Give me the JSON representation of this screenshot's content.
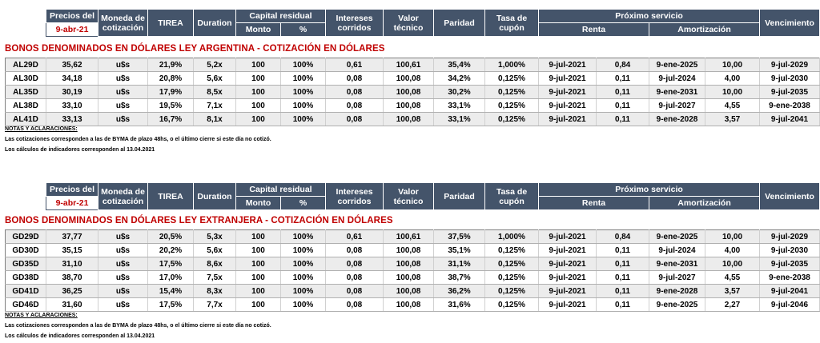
{
  "header": {
    "precios_del": "Precios del",
    "date": "9-abr-21",
    "moneda": "Moneda de",
    "cotizacion": "cotización",
    "tirea": "TIREA",
    "duration": "Duration",
    "capital_residual": "Capital residual",
    "monto": "Monto",
    "pct": "%",
    "intereses": "Intereses",
    "corridos": "corridos",
    "valor": "Valor",
    "tecnico": "técnico",
    "paridad": "Paridad",
    "tasa_de": "Tasa de",
    "cupon": "cupón",
    "proximo_servicio": "Próximo servicio",
    "renta": "Renta",
    "amortizacion": "Amortización",
    "vencimiento": "Vencimiento"
  },
  "notes": {
    "title": "NOTAS Y ACLARACIONES:",
    "line1": "Las cotizaciones corresponden a las de BYMA de plazo 48hs, o el último cierre si este día no cotizó.",
    "line2": "Los cálculos de indicadores corresponden al 13.04.2021"
  },
  "sections": [
    {
      "title": "BONOS DENOMINADOS EN DÓLARES LEY ARGENTINA   -   COTIZACIÓN EN DÓLARES",
      "rows": [
        [
          "AL29D",
          "35,62",
          "u$s",
          "21,9%",
          "5,2x",
          "100",
          "100%",
          "0,61",
          "100,61",
          "35,4%",
          "1,000%",
          "9-jul-2021",
          "0,84",
          "9-ene-2025",
          "10,00",
          "9-jul-2029"
        ],
        [
          "AL30D",
          "34,18",
          "u$s",
          "20,8%",
          "5,6x",
          "100",
          "100%",
          "0,08",
          "100,08",
          "34,2%",
          "0,125%",
          "9-jul-2021",
          "0,11",
          "9-jul-2024",
          "4,00",
          "9-jul-2030"
        ],
        [
          "AL35D",
          "30,19",
          "u$s",
          "17,9%",
          "8,5x",
          "100",
          "100%",
          "0,08",
          "100,08",
          "30,2%",
          "0,125%",
          "9-jul-2021",
          "0,11",
          "9-ene-2031",
          "10,00",
          "9-jul-2035"
        ],
        [
          "AL38D",
          "33,10",
          "u$s",
          "19,5%",
          "7,1x",
          "100",
          "100%",
          "0,08",
          "100,08",
          "33,1%",
          "0,125%",
          "9-jul-2021",
          "0,11",
          "9-jul-2027",
          "4,55",
          "9-ene-2038"
        ],
        [
          "AL41D",
          "33,13",
          "u$s",
          "16,7%",
          "8,1x",
          "100",
          "100%",
          "0,08",
          "100,08",
          "33,1%",
          "0,125%",
          "9-jul-2021",
          "0,11",
          "9-ene-2028",
          "3,57",
          "9-jul-2041"
        ]
      ]
    },
    {
      "title": "BONOS DENOMINADOS EN DÓLARES LEY EXTRANJERA   -   COTIZACIÓN EN DÓLARES",
      "rows": [
        [
          "GD29D",
          "37,77",
          "u$s",
          "20,5%",
          "5,3x",
          "100",
          "100%",
          "0,61",
          "100,61",
          "37,5%",
          "1,000%",
          "9-jul-2021",
          "0,84",
          "9-ene-2025",
          "10,00",
          "9-jul-2029"
        ],
        [
          "GD30D",
          "35,15",
          "u$s",
          "20,2%",
          "5,6x",
          "100",
          "100%",
          "0,08",
          "100,08",
          "35,1%",
          "0,125%",
          "9-jul-2021",
          "0,11",
          "9-jul-2024",
          "4,00",
          "9-jul-2030"
        ],
        [
          "GD35D",
          "31,10",
          "u$s",
          "17,5%",
          "8,6x",
          "100",
          "100%",
          "0,08",
          "100,08",
          "31,1%",
          "0,125%",
          "9-jul-2021",
          "0,11",
          "9-ene-2031",
          "10,00",
          "9-jul-2035"
        ],
        [
          "GD38D",
          "38,70",
          "u$s",
          "17,0%",
          "7,5x",
          "100",
          "100%",
          "0,08",
          "100,08",
          "38,7%",
          "0,125%",
          "9-jul-2021",
          "0,11",
          "9-jul-2027",
          "4,55",
          "9-ene-2038"
        ],
        [
          "GD41D",
          "36,25",
          "u$s",
          "15,4%",
          "8,3x",
          "100",
          "100%",
          "0,08",
          "100,08",
          "36,2%",
          "0,125%",
          "9-jul-2021",
          "0,11",
          "9-ene-2028",
          "3,57",
          "9-jul-2041"
        ],
        [
          "GD46D",
          "31,60",
          "u$s",
          "17,5%",
          "7,7x",
          "100",
          "100%",
          "0,08",
          "100,08",
          "31,6%",
          "0,125%",
          "9-jul-2021",
          "0,11",
          "9-ene-2025",
          "2,27",
          "9-jul-2046"
        ]
      ]
    }
  ]
}
